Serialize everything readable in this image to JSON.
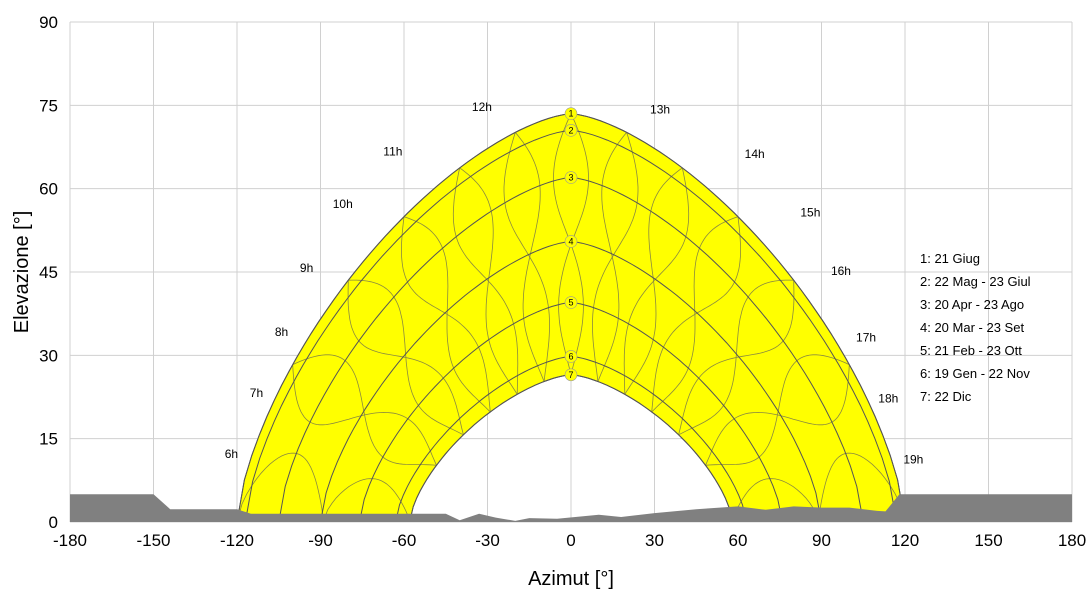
{
  "chart_data": {
    "type": "line",
    "title": "",
    "xlabel": "Azimut [°]",
    "ylabel": "Elevazione [°]",
    "xlim": [
      -180,
      180
    ],
    "ylim": [
      0,
      90
    ],
    "x_ticks": [
      -180,
      -150,
      -120,
      -90,
      -60,
      -30,
      0,
      30,
      60,
      90,
      120,
      150,
      180
    ],
    "y_ticks": [
      0,
      15,
      30,
      45,
      60,
      75,
      90
    ],
    "grid": true,
    "colors": {
      "sun_region": "#ffff00",
      "horizon": "#808080",
      "curve": "#555555",
      "grid": "#d0d0d0"
    },
    "sun_paths": [
      {
        "label": "1",
        "noon_elevation": 73.5,
        "sunrise_azimuth": -120
      },
      {
        "label": "2",
        "noon_elevation": 70.5,
        "sunrise_azimuth": -117
      },
      {
        "label": "3",
        "noon_elevation": 62,
        "sunrise_azimuth": -105
      },
      {
        "label": "4",
        "noon_elevation": 50.5,
        "sunrise_azimuth": -90
      },
      {
        "label": "5",
        "noon_elevation": 39.5,
        "sunrise_azimuth": -76
      },
      {
        "label": "6",
        "noon_elevation": 29.8,
        "sunrise_azimuth": -63
      },
      {
        "label": "7",
        "noon_elevation": 26.5,
        "sunrise_azimuth": -58
      }
    ],
    "hour_labels": [
      {
        "label": "6h",
        "x": -122,
        "y": 11.5
      },
      {
        "label": "7h",
        "x": -113,
        "y": 22.5
      },
      {
        "label": "8h",
        "x": -104,
        "y": 33.5
      },
      {
        "label": "9h",
        "x": -95,
        "y": 45
      },
      {
        "label": "10h",
        "x": -82,
        "y": 56.5
      },
      {
        "label": "11h",
        "x": -64,
        "y": 66
      },
      {
        "label": "12h",
        "x": -32,
        "y": 74
      },
      {
        "label": "13h",
        "x": 32,
        "y": 73.5
      },
      {
        "label": "14h",
        "x": 66,
        "y": 65.5
      },
      {
        "label": "15h",
        "x": 86,
        "y": 55
      },
      {
        "label": "16h",
        "x": 97,
        "y": 44.5
      },
      {
        "label": "17h",
        "x": 106,
        "y": 32.5
      },
      {
        "label": "18h",
        "x": 114,
        "y": 21.5
      },
      {
        "label": "19h",
        "x": 123,
        "y": 10.5
      }
    ],
    "horizon_profile": [
      [
        -180,
        5
      ],
      [
        -150,
        5
      ],
      [
        -144,
        2.3
      ],
      [
        -120,
        2.3
      ],
      [
        -115,
        1.5
      ],
      [
        -45,
        1.5
      ],
      [
        -40,
        0.3
      ],
      [
        -33,
        1.5
      ],
      [
        -27,
        0.8
      ],
      [
        -20,
        0.2
      ],
      [
        -15,
        0.7
      ],
      [
        -5,
        0.6
      ],
      [
        10,
        1.3
      ],
      [
        18,
        0.9
      ],
      [
        30,
        1.6
      ],
      [
        45,
        2.3
      ],
      [
        60,
        2.8
      ],
      [
        70,
        2.2
      ],
      [
        80,
        2.8
      ],
      [
        90,
        2.6
      ],
      [
        100,
        2.6
      ],
      [
        110,
        2.0
      ],
      [
        113,
        1.9
      ],
      [
        118,
        5
      ],
      [
        180,
        5
      ]
    ],
    "legend": {
      "placement": "right",
      "entries": [
        "1: 21 Giug",
        "2: 22 Mag - 23 Giul",
        "3: 20 Apr - 23 Ago",
        "4: 20 Mar - 23 Set",
        "5: 21 Feb - 23 Ott",
        "6: 19 Gen - 22 Nov",
        "7: 22 Dic"
      ]
    }
  }
}
